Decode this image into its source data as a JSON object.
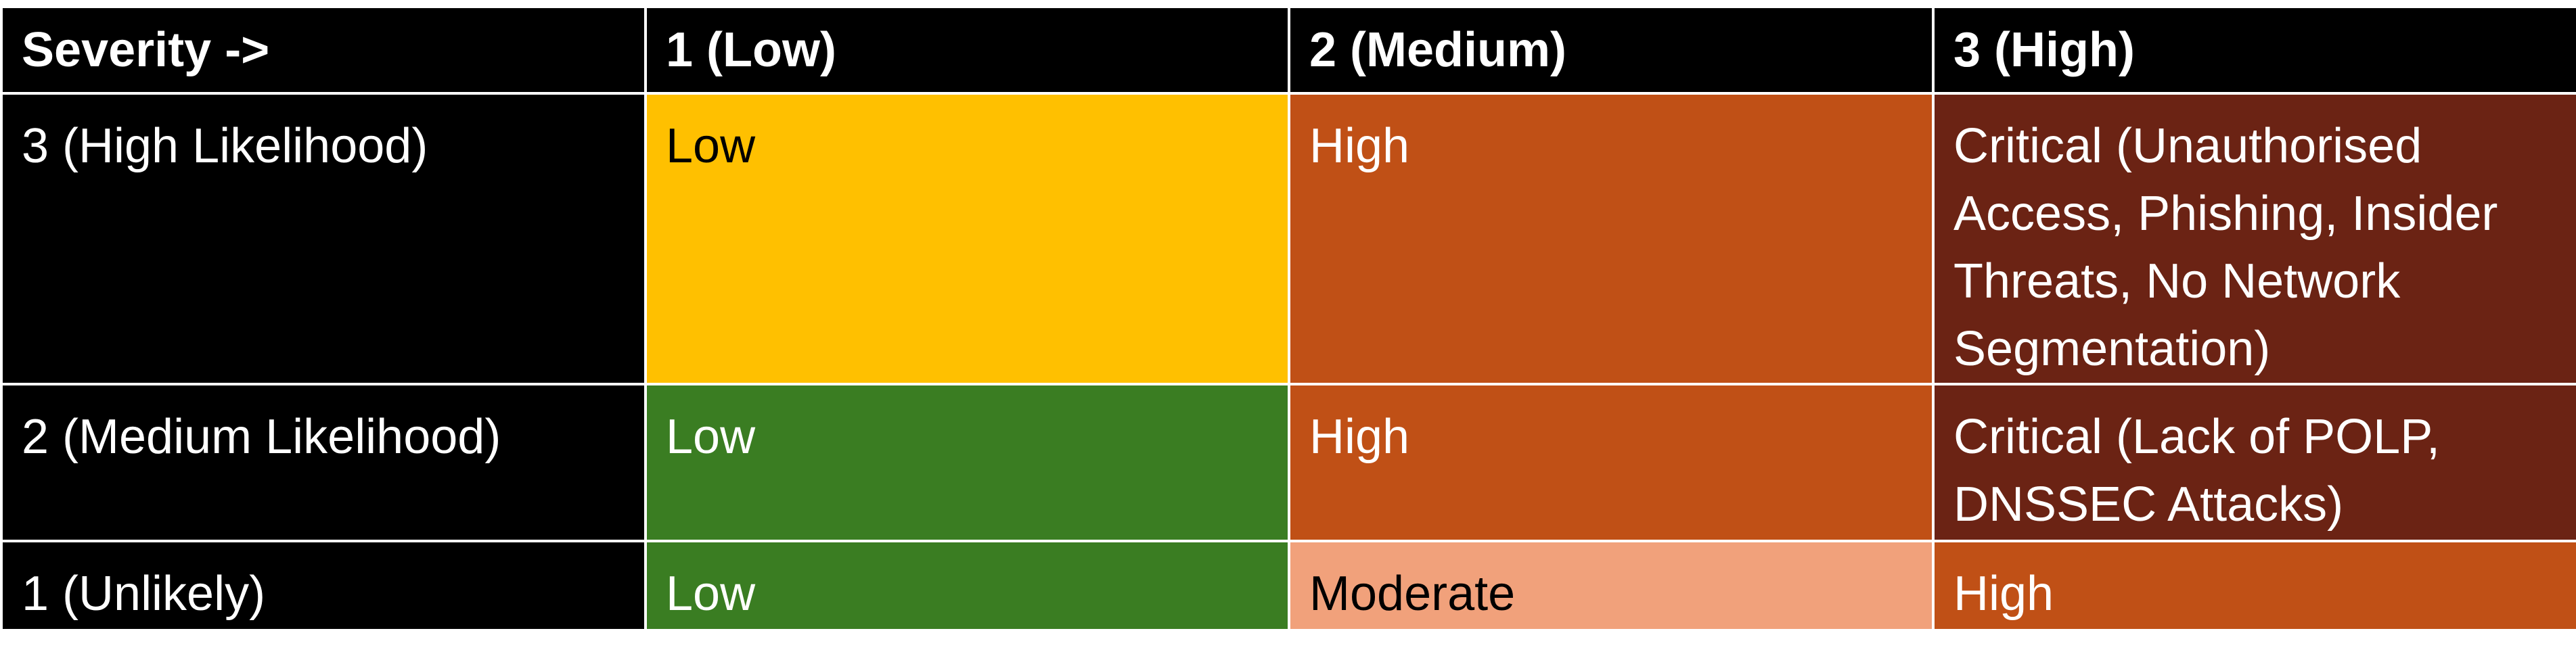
{
  "header": [
    "Severity ->",
    "1 (Low)",
    "2 (Medium)",
    "3 (High)"
  ],
  "rows": [
    {
      "label": "3 (High Likelihood)",
      "cells": [
        {
          "text": "Low",
          "color": "#ffc000"
        },
        {
          "text": "High",
          "color": "#c05016"
        },
        {
          "text": "Critical (Unauthorised Access, Phishing, Insider Threats, No Network Segmentation)",
          "color": "#6b2314"
        }
      ]
    },
    {
      "label": "2 (Medium Likelihood)",
      "cells": [
        {
          "text": "Low",
          "color": "#3a7d22"
        },
        {
          "text": "High",
          "color": "#c05016"
        },
        {
          "text": "Critical (Lack of POLP, DNSSEC Attacks)",
          "color": "#6b2314"
        }
      ]
    },
    {
      "label": "1 (Unlikely)",
      "cells": [
        {
          "text": "Low",
          "color": "#3a7d22"
        },
        {
          "text": "Moderate",
          "color": "#f1a17b"
        },
        {
          "text": "High",
          "color": "#c05016"
        }
      ]
    }
  ]
}
